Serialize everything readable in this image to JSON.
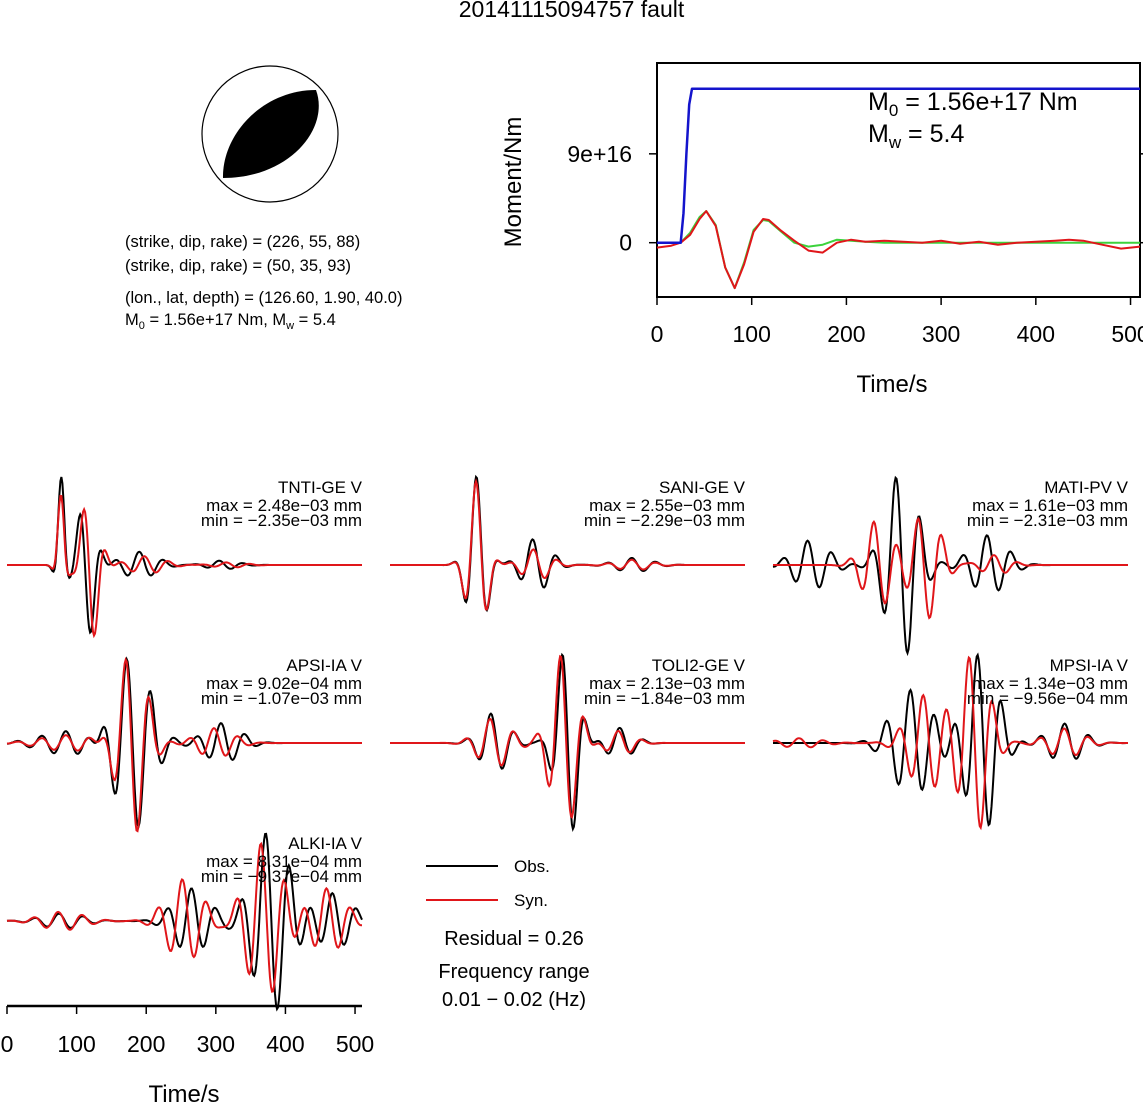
{
  "title": "20141115094757 fault",
  "beachball": {
    "lines": [
      "(strike, dip, rake) = (226, 55, 88)",
      "(strike, dip, rake) = (50, 35, 93)",
      "(lon., lat, depth) = (126.60, 1.90, 40.0)"
    ],
    "moment_line": {
      "m0_value": " = 1.56e+17 Nm, M",
      "mw_value": " = 5.4"
    }
  },
  "legend": {
    "obs": "Obs.",
    "syn": "Syn.",
    "residual": "Residual = 0.26",
    "freq_label": "Frequency range",
    "freq_value": "0.01 − 0.02 (Hz)"
  },
  "colors": {
    "obs": "#000000",
    "syn": "#e0161a",
    "moment": "#1414cc",
    "stf_fit": "#3cd23c"
  },
  "chart_data": [
    {
      "type": "line",
      "name": "moment-panel",
      "xlabel": "Time/s",
      "ylabel": "Moment/Nm",
      "xlim": [
        0,
        510
      ],
      "ylim": [
        -5.5e+16,
        1.82e+17
      ],
      "xticks": [
        0,
        100,
        200,
        300,
        400,
        500
      ],
      "yticks": [
        {
          "value": 0,
          "label": "0"
        },
        {
          "value": 9e+16,
          "label": "9e+16"
        }
      ],
      "annotation": {
        "m0": " = 1.56e+17 Nm",
        "mw": " = 5.4"
      },
      "series": [
        {
          "role": "moment",
          "x": [
            0,
            25,
            28,
            31,
            34,
            37,
            510
          ],
          "y": [
            0,
            0,
            3e+16,
            9e+16,
            1.4e+17,
            1.56e+17,
            1.56e+17
          ]
        },
        {
          "role": "stf_fit",
          "x": [
            0,
            25,
            35,
            45,
            52,
            62,
            72,
            82,
            92,
            102,
            112,
            118,
            130,
            145,
            160,
            175,
            190,
            205,
            220,
            240,
            260,
            510
          ],
          "y": [
            0,
            0,
            1e+16,
            2.6e+16,
            3.2e+16,
            1.8e+16,
            -2.5e+16,
            -4.6e+16,
            -2e+16,
            1.3e+16,
            2.3e+16,
            2.2e+16,
            1.2e+16,
            0,
            -4000000000000000.0,
            -2000000000000000.0,
            3000000000000000.0,
            2000000000000000.0,
            1000000000000000.0,
            0,
            0,
            0
          ]
        },
        {
          "role": "syn",
          "x": [
            0,
            15,
            25,
            35,
            45,
            52,
            62,
            72,
            82,
            92,
            102,
            112,
            118,
            130,
            145,
            160,
            175,
            190,
            205,
            220,
            240,
            260,
            280,
            300,
            320,
            340,
            360,
            380,
            400,
            420,
            435,
            450,
            470,
            490,
            510
          ],
          "y": [
            -5000000000000000.0,
            -3000000000000000.0,
            0,
            8000000000000000.0,
            2.4e+16,
            3.2e+16,
            1.7e+16,
            -2.5e+16,
            -4.6e+16,
            -2.2e+16,
            1.1e+16,
            2.4e+16,
            2.3e+16,
            1.3e+16,
            2000000000000000.0,
            -8000000000000000.0,
            -1e+16,
            0,
            3000000000000000.0,
            1000000000000000.0,
            2000000000000000.0,
            1000000000000000.0,
            0,
            2000000000000000.0,
            -1000000000000000.0,
            1000000000000000.0,
            -2000000000000000.0,
            0,
            1000000000000000.0,
            2000000000000000.0,
            3000000000000000.0,
            2000000000000000.0,
            -2000000000000000.0,
            -6000000000000000.0,
            -4000000000000000.0
          ]
        }
      ]
    },
    {
      "type": "line",
      "name": "waveforms",
      "xlabel": "Time/s",
      "xlim": [
        0,
        510
      ],
      "xticks": [
        0,
        100,
        200,
        300,
        400,
        500
      ],
      "units": "mm",
      "stations": [
        {
          "label": "TNTI-GE V",
          "max": "max = 2.48e−03 mm",
          "min": "min = −2.35e−03 mm",
          "obs": {
            "max": 0.00248,
            "min": -0.00235,
            "packets": [
              [
                78,
                6,
                1.0,
                0
              ],
              [
                115,
                12,
                0.85,
                2.1
              ],
              [
                190,
                25,
                0.15,
                0
              ],
              [
                310,
                22,
                0.05,
                1
              ]
            ]
          },
          "syn": {
            "packets": [
              [
                78,
                6,
                0.8,
                0.2
              ],
              [
                120,
                12,
                0.9,
                2.0
              ],
              [
                200,
                25,
                0.1,
                0.5
              ],
              [
                320,
                22,
                0.03,
                1
              ]
            ]
          }
        },
        {
          "label": "SANI-GE V",
          "max": "max = 2.55e−03 mm",
          "min": "min = −2.29e−03 mm",
          "obs": {
            "max": 0.00255,
            "min": -0.00229,
            "packets": [
              [
                125,
                13,
                1.0,
                0.2
              ],
              [
                210,
                20,
                0.3,
                1.0
              ],
              [
                350,
                25,
                0.08,
                0.5
              ]
            ]
          },
          "syn": {
            "packets": [
              [
                125,
                13,
                0.95,
                0.3
              ],
              [
                210,
                20,
                0.18,
                0.8
              ],
              [
                350,
                25,
                0.06,
                0.5
              ]
            ]
          }
        },
        {
          "label": "MATI-PV V",
          "max": "max = 1.61e−03 mm",
          "min": "min = −2.31e−03 mm",
          "obs": {
            "max": 0.00161,
            "min": -0.00231,
            "packets": [
              [
                55,
                25,
                0.25,
                1
              ],
              [
                185,
                22,
                0.95,
                1.6
              ],
              [
                310,
                25,
                0.3,
                0.5
              ]
            ]
          },
          "syn": {
            "packets": [
              [
                150,
                20,
                0.45,
                1.0
              ],
              [
                220,
                20,
                0.55,
                2.2
              ],
              [
                320,
                20,
                0.1,
                0.5
              ]
            ]
          }
        },
        {
          "label": "APSI-IA V",
          "max": "max = 9.02e−04 mm",
          "min": "min = −1.07e−03 mm",
          "obs": {
            "max": 0.000902,
            "min": -0.00107,
            "packets": [
              [
                90,
                40,
                0.12,
                1
              ],
              [
                180,
                25,
                0.9,
                1.5
              ],
              [
                310,
                25,
                0.2,
                0.5
              ]
            ]
          },
          "syn": {
            "packets": [
              [
                90,
                40,
                0.08,
                1
              ],
              [
                180,
                20,
                0.95,
                1.8
              ],
              [
                300,
                25,
                0.15,
                0.5
              ]
            ]
          }
        },
        {
          "label": "TOLI2-GE V",
          "max": "max = 2.13e−03 mm",
          "min": "min = −1.84e−03 mm",
          "obs": {
            "max": 0.00213,
            "min": -0.00184,
            "packets": [
              [
                150,
                20,
                0.3,
                1
              ],
              [
                255,
                15,
                1.0,
                1.5
              ],
              [
                330,
                20,
                0.15,
                0
              ]
            ]
          },
          "syn": {
            "packets": [
              [
                150,
                22,
                0.25,
                1.2
              ],
              [
                250,
                18,
                0.9,
                1.0
              ],
              [
                330,
                20,
                0.12,
                0.4
              ]
            ]
          }
        },
        {
          "label": "MPSI-IA V",
          "max": "max = 1.34e−03 mm",
          "min": "min = −9.56e−04 mm",
          "obs": {
            "max": 0.00134,
            "min": -0.000956,
            "packets": [
              [
                200,
                28,
                0.55,
                0.5
              ],
              [
                300,
                22,
                0.95,
                1.2
              ],
              [
                420,
                25,
                0.2,
                0.2
              ]
            ]
          },
          "syn": {
            "packets": [
              [
                40,
                30,
                0.05,
                0.5
              ],
              [
                220,
                25,
                0.5,
                0.8
              ],
              [
                290,
                20,
                0.95,
                1.6
              ],
              [
                420,
                25,
                0.15,
                0.3
              ]
            ]
          }
        },
        {
          "label": "ALKI-IA V",
          "max": "max = 8.31e−04 mm",
          "min": "min = −9.37e−04 mm",
          "obs": {
            "max": 0.000831,
            "min": -0.000937,
            "packets": [
              [
                80,
                30,
                0.08,
                1
              ],
              [
                265,
                25,
                0.35,
                0
              ],
              [
                380,
                25,
                1.0,
                1.6
              ],
              [
                470,
                25,
                0.3,
                0.5
              ]
            ]
          },
          "syn": {
            "packets": [
              [
                80,
                30,
                0.1,
                1.2
              ],
              [
                255,
                25,
                0.45,
                0.6
              ],
              [
                370,
                25,
                0.85,
                1.0
              ],
              [
                460,
                25,
                0.35,
                0.2
              ]
            ]
          }
        }
      ]
    }
  ]
}
